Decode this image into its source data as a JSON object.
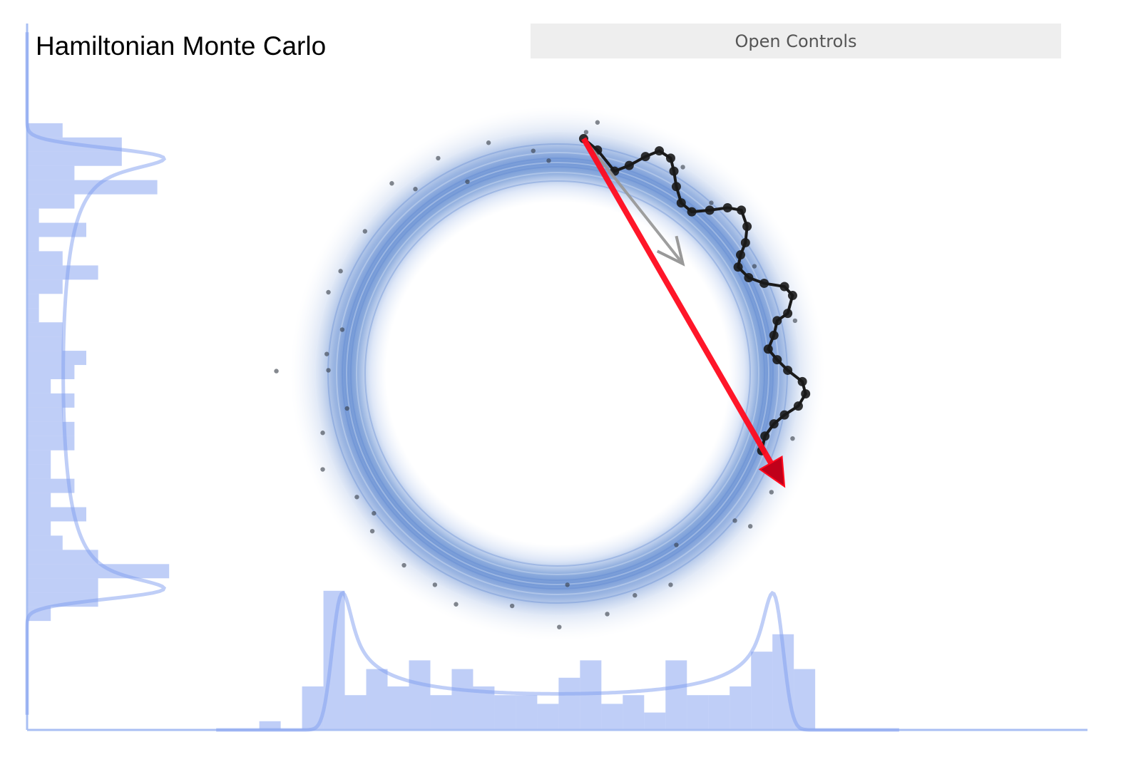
{
  "title": "Hamiltonian Monte Carlo",
  "controls_button": "Open Controls",
  "colors": {
    "histogram": "#7f9ef0",
    "density": "#7f9ef0",
    "ring": "#3d6fc8",
    "chain": "#1a1a1a",
    "proposal_arrow": "#ff0a1e",
    "momentum_arrow": "#999999",
    "samples": "#333a44"
  },
  "chart_data": {
    "type": "scatter",
    "target": "donut",
    "donut_radius": 2.72,
    "donut_sigma": 0.1,
    "samples": [
      [
        0.49,
        3.09
      ],
      [
        0.35,
        2.97
      ],
      [
        -0.11,
        2.62
      ],
      [
        -0.3,
        2.74
      ],
      [
        -0.85,
        2.84
      ],
      [
        -1.47,
        2.65
      ],
      [
        -2.04,
        2.34
      ],
      [
        -1.75,
        2.27
      ],
      [
        -2.37,
        1.75
      ],
      [
        -2.67,
        1.26
      ],
      [
        -2.82,
        1.0
      ],
      [
        -2.65,
        0.54
      ],
      [
        -2.84,
        0.24
      ],
      [
        -2.82,
        0.04
      ],
      [
        -3.46,
        0.03
      ],
      [
        -2.59,
        -0.43
      ],
      [
        -2.89,
        -0.73
      ],
      [
        -2.89,
        -1.18
      ],
      [
        -2.47,
        -1.52
      ],
      [
        -2.28,
        -1.94
      ],
      [
        -1.89,
        -2.36
      ],
      [
        -1.51,
        -2.6
      ],
      [
        -1.25,
        -2.84
      ],
      [
        -0.56,
        -2.86
      ],
      [
        0.02,
        -3.12
      ],
      [
        0.12,
        -2.6
      ],
      [
        0.61,
        -2.96
      ],
      [
        0.95,
        -2.73
      ],
      [
        1.39,
        -2.6
      ],
      [
        1.46,
        -2.11
      ],
      [
        2.18,
        -1.81
      ],
      [
        2.37,
        -1.88
      ],
      [
        2.63,
        -1.46
      ],
      [
        2.89,
        -0.8
      ],
      [
        2.92,
        0.65
      ],
      [
        2.42,
        1.32
      ],
      [
        1.89,
        2.1
      ],
      [
        1.54,
        2.54
      ],
      [
        -1.11,
        2.36
      ],
      [
        -2.26,
        -1.72
      ]
    ],
    "trajectory": [
      [
        0.32,
        2.89
      ],
      [
        0.49,
        2.75
      ],
      [
        0.7,
        2.49
      ],
      [
        0.88,
        2.56
      ],
      [
        1.08,
        2.67
      ],
      [
        1.25,
        2.74
      ],
      [
        1.39,
        2.65
      ],
      [
        1.43,
        2.49
      ],
      [
        1.46,
        2.3
      ],
      [
        1.52,
        2.1
      ],
      [
        1.65,
        1.99
      ],
      [
        1.87,
        2.01
      ],
      [
        2.09,
        2.04
      ],
      [
        2.26,
        2.01
      ],
      [
        2.33,
        1.81
      ],
      [
        2.31,
        1.61
      ],
      [
        2.25,
        1.46
      ],
      [
        2.22,
        1.31
      ],
      [
        2.35,
        1.18
      ],
      [
        2.54,
        1.11
      ],
      [
        2.79,
        1.07
      ],
      [
        2.89,
        0.96
      ],
      [
        2.83,
        0.74
      ],
      [
        2.7,
        0.65
      ],
      [
        2.66,
        0.47
      ],
      [
        2.59,
        0.3
      ],
      [
        2.7,
        0.17
      ],
      [
        2.83,
        0.04
      ],
      [
        3.01,
        -0.1
      ],
      [
        3.05,
        -0.25
      ],
      [
        2.96,
        -0.4
      ],
      [
        2.79,
        -0.51
      ],
      [
        2.66,
        -0.62
      ],
      [
        2.55,
        -0.77
      ],
      [
        2.51,
        -0.95
      ]
    ],
    "proposal_arrow": {
      "from": [
        0.32,
        2.89
      ],
      "to": [
        2.79,
        -1.39
      ]
    },
    "momentum_arrow": {
      "from": [
        0.32,
        2.89
      ],
      "to": [
        1.54,
        1.35
      ]
    },
    "x_histogram": {
      "start": -3.67,
      "bin_width": 0.263,
      "counts": [
        1,
        0,
        5,
        16,
        4,
        7,
        5,
        8,
        4,
        7,
        5,
        4,
        4,
        3,
        6,
        8,
        3,
        4,
        2,
        8,
        4,
        4,
        5,
        9,
        11,
        7
      ]
    },
    "y_histogram": {
      "start": 3.08,
      "bin_width": 0.175,
      "counts": [
        3,
        8,
        8,
        4,
        11,
        4,
        1,
        5,
        1,
        3,
        6,
        3,
        1,
        1,
        3,
        3,
        5,
        4,
        2,
        4,
        3,
        4,
        4,
        2,
        2,
        4,
        2,
        5,
        2,
        3,
        6,
        12,
        6,
        6,
        2
      ]
    }
  }
}
